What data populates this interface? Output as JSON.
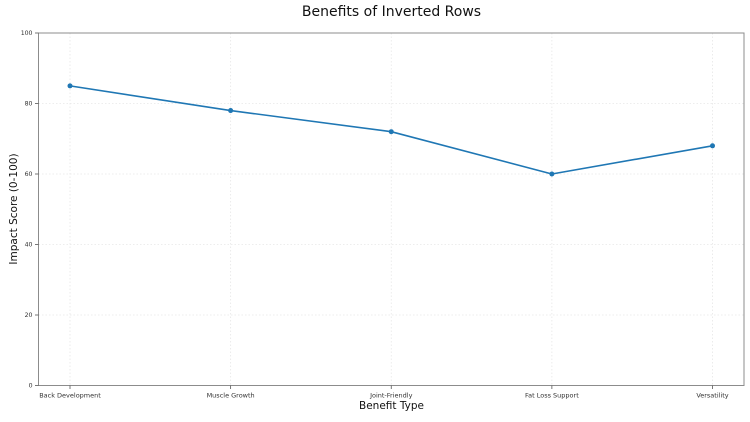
{
  "title": "Benefits of Inverted Rows",
  "chart_data": {
    "type": "line",
    "title": "Benefits of Inverted Rows",
    "categories": [
      "Back Development",
      "Muscle Growth",
      "Joint-Friendly",
      "Fat Loss Support",
      "Versatility"
    ],
    "series": [
      {
        "name": "Impact Score",
        "values": [
          85,
          78,
          72,
          60,
          68
        ]
      }
    ],
    "xlabel": "Benefit Type",
    "ylabel": "Impact Score (0-100)",
    "ylim": [
      0,
      100
    ],
    "yticks": [
      0,
      20,
      40,
      60,
      80,
      100
    ],
    "grid": true,
    "legend_position": "none",
    "line_color": "#1f77b4",
    "grid_color": "#e7e7e7",
    "spine_color": "#8c8c8c",
    "tick_color": "#555555",
    "marker": "circle"
  }
}
